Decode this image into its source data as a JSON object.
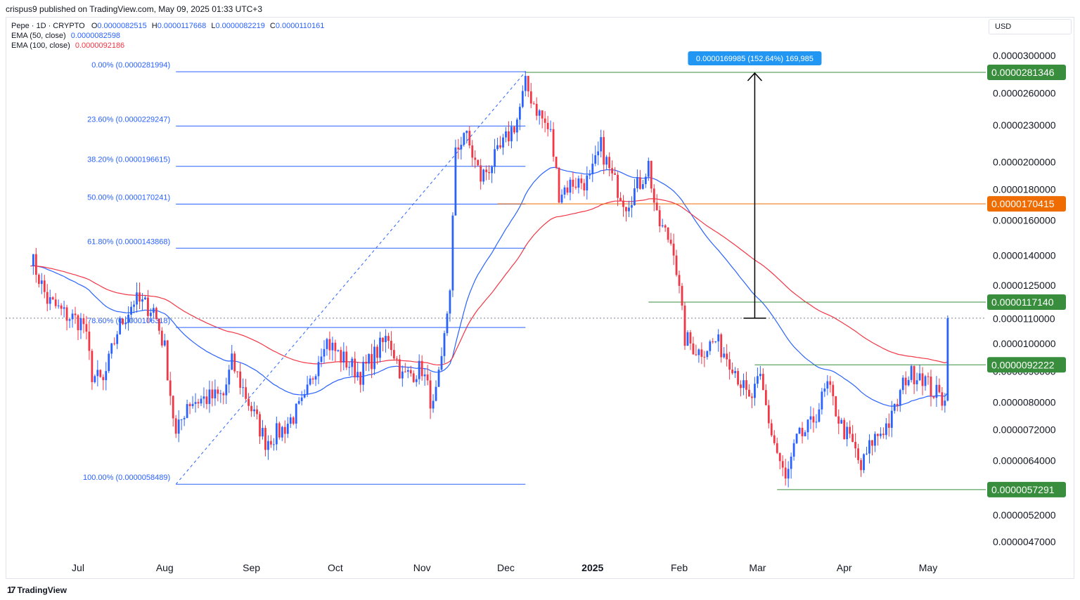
{
  "publisher_line": "crispus9 published on TradingView.com, May 09, 2025 01:33 UTC+3",
  "legend": {
    "symbol": "Pepe · 1D · CRYPTO",
    "o_label": "O",
    "o_value": "0.0000082515",
    "h_label": "H",
    "h_value": "0.0000117668",
    "l_label": "L",
    "l_value": "0.0000082219",
    "c_label": "C",
    "c_value": "0.0000110161",
    "ema50_label": "EMA (50, close)",
    "ema50_value": "0.0000082598",
    "ema100_label": "EMA (100, close)",
    "ema100_value": "0.0000092186"
  },
  "currency_button": "USD",
  "footer": {
    "logo_mark": "17",
    "logo_text": "TradingView"
  },
  "colors": {
    "bull": "#2962ff",
    "bear": "#f23645",
    "ema50": "#2962ff",
    "ema100": "#f23645",
    "fib": "#2962ff",
    "support": "#388e3c",
    "resistance_orange": "#ef6c00",
    "measure_bg": "#2196f3"
  },
  "chart_data": {
    "type": "candlestick",
    "y_scale": "log",
    "y_ticks": [
      "0.0000300000",
      "0.0000260000",
      "0.0000230000",
      "0.0000200000",
      "0.0000180000",
      "0.0000160000",
      "0.0000140000",
      "0.0000125000",
      "0.0000110000",
      "0.0000100000",
      "0.0000090000",
      "0.0000080000",
      "0.0000072000",
      "0.0000064000",
      "0.0000052000",
      "0.0000047000"
    ],
    "x_ticks": [
      "Jul",
      "Aug",
      "Sep",
      "Oct",
      "Nov",
      "Dec",
      "2025",
      "Feb",
      "Mar",
      "Apr",
      "May"
    ],
    "price_labels": [
      {
        "text": "0.0000281346",
        "value": 2.81346e-05,
        "color": "#388e3c"
      },
      {
        "text": "0.0000170415",
        "value": 1.70415e-05,
        "color": "#ef6c00"
      },
      {
        "text": "0.0000117140",
        "value": 1.1714e-05,
        "color": "#388e3c"
      },
      {
        "text": "0.0000092222",
        "value": 9.2222e-06,
        "color": "#388e3c"
      },
      {
        "text": "0.0000057291",
        "value": 5.7291e-06,
        "color": "#388e3c"
      }
    ],
    "fib_levels": [
      {
        "label": "0.00% (0.0000281994)",
        "value": 2.81994e-05
      },
      {
        "label": "23.60% (0.0000229247)",
        "value": 2.29247e-05
      },
      {
        "label": "38.20% (0.0000196615)",
        "value": 1.96615e-05
      },
      {
        "label": "50.00% (0.0000170241)",
        "value": 1.70241e-05
      },
      {
        "label": "61.80% (0.0000143868)",
        "value": 1.43868e-05
      },
      {
        "label": "78.60% (0.0000106318)",
        "value": 1.06318e-05
      },
      {
        "label": "100.00% (0.0000058489)",
        "value": 5.8489e-06
      }
    ],
    "measure_label": "0.0000169985 (152.64%) 169,985",
    "last_price": 1.10161e-05,
    "candle_closes": [
      {
        "date": "2024-06-14",
        "close": 1.4e-05
      },
      {
        "date": "2024-06-20",
        "close": 1.18e-05
      },
      {
        "date": "2024-06-26",
        "close": 1.12e-05
      },
      {
        "date": "2024-07-03",
        "close": 1.08e-05
      },
      {
        "date": "2024-07-06",
        "close": 8.9e-06
      },
      {
        "date": "2024-07-10",
        "close": 8.6e-06
      },
      {
        "date": "2024-07-15",
        "close": 1.05e-05
      },
      {
        "date": "2024-07-21",
        "close": 1.18e-05
      },
      {
        "date": "2024-07-28",
        "close": 1.14e-05
      },
      {
        "date": "2024-08-01",
        "close": 9.8e-06
      },
      {
        "date": "2024-08-05",
        "close": 7e-06
      },
      {
        "date": "2024-08-09",
        "close": 8e-06
      },
      {
        "date": "2024-08-15",
        "close": 8.1e-06
      },
      {
        "date": "2024-08-22",
        "close": 8.2e-06
      },
      {
        "date": "2024-08-25",
        "close": 9.3e-06
      },
      {
        "date": "2024-09-02",
        "close": 7.6e-06
      },
      {
        "date": "2024-09-06",
        "close": 6.9e-06
      },
      {
        "date": "2024-09-12",
        "close": 7.2e-06
      },
      {
        "date": "2024-09-20",
        "close": 8e-06
      },
      {
        "date": "2024-09-27",
        "close": 1.02e-05
      },
      {
        "date": "2024-10-03",
        "close": 9.5e-06
      },
      {
        "date": "2024-10-10",
        "close": 8.9e-06
      },
      {
        "date": "2024-10-20",
        "close": 1.03e-05
      },
      {
        "date": "2024-10-25",
        "close": 8.8e-06
      },
      {
        "date": "2024-11-01",
        "close": 9.1e-06
      },
      {
        "date": "2024-11-05",
        "close": 7.8e-06
      },
      {
        "date": "2024-11-08",
        "close": 9.2e-06
      },
      {
        "date": "2024-11-11",
        "close": 1.25e-05
      },
      {
        "date": "2024-11-13",
        "close": 2.05e-05
      },
      {
        "date": "2024-11-16",
        "close": 2.25e-05
      },
      {
        "date": "2024-11-22",
        "close": 1.88e-05
      },
      {
        "date": "2024-11-28",
        "close": 2.05e-05
      },
      {
        "date": "2024-12-05",
        "close": 2.35e-05
      },
      {
        "date": "2024-12-08",
        "close": 2.68e-05
      },
      {
        "date": "2024-12-12",
        "close": 2.45e-05
      },
      {
        "date": "2024-12-17",
        "close": 2.22e-05
      },
      {
        "date": "2024-12-20",
        "close": 1.78e-05
      },
      {
        "date": "2024-12-25",
        "close": 1.85e-05
      },
      {
        "date": "2024-12-31",
        "close": 1.86e-05
      },
      {
        "date": "2025-01-04",
        "close": 2.12e-05
      },
      {
        "date": "2025-01-08",
        "close": 1.88e-05
      },
      {
        "date": "2025-01-13",
        "close": 1.71e-05
      },
      {
        "date": "2025-01-18",
        "close": 1.85e-05
      },
      {
        "date": "2025-01-21",
        "close": 1.98e-05
      },
      {
        "date": "2025-01-24",
        "close": 1.6e-05
      },
      {
        "date": "2025-01-30",
        "close": 1.45e-05
      },
      {
        "date": "2025-02-03",
        "close": 1.02e-05
      },
      {
        "date": "2025-02-08",
        "close": 9.7e-06
      },
      {
        "date": "2025-02-14",
        "close": 1.01e-05
      },
      {
        "date": "2025-02-20",
        "close": 9.3e-06
      },
      {
        "date": "2025-02-26",
        "close": 8e-06
      },
      {
        "date": "2025-03-02",
        "close": 8.7e-06
      },
      {
        "date": "2025-03-06",
        "close": 7.1e-06
      },
      {
        "date": "2025-03-11",
        "close": 5.9e-06
      },
      {
        "date": "2025-03-15",
        "close": 6.9e-06
      },
      {
        "date": "2025-03-20",
        "close": 7.3e-06
      },
      {
        "date": "2025-03-26",
        "close": 8.5e-06
      },
      {
        "date": "2025-03-31",
        "close": 7.3e-06
      },
      {
        "date": "2025-04-04",
        "close": 6.8e-06
      },
      {
        "date": "2025-04-07",
        "close": 6.2e-06
      },
      {
        "date": "2025-04-11",
        "close": 6.9e-06
      },
      {
        "date": "2025-04-18",
        "close": 7.5e-06
      },
      {
        "date": "2025-04-23",
        "close": 8.8e-06
      },
      {
        "date": "2025-04-28",
        "close": 9e-06
      },
      {
        "date": "2025-05-02",
        "close": 8.4e-06
      },
      {
        "date": "2025-05-06",
        "close": 8.1e-06
      },
      {
        "date": "2025-05-07",
        "close": 8.3e-06
      },
      {
        "date": "2025-05-08",
        "close": 1.1e-05
      }
    ]
  }
}
